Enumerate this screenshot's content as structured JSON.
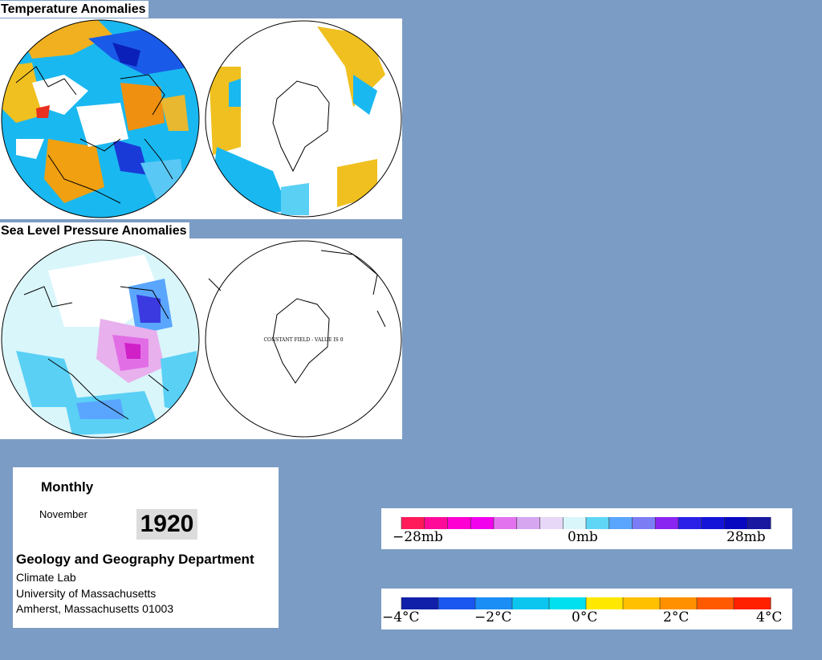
{
  "sections": {
    "temperature_title": "Temperature Anomalies",
    "pressure_title": "Sea Level Pressure Anomalies"
  },
  "maps": {
    "slp_south_annotation": "CONSTANT FIELD - VALUE IS 0"
  },
  "info": {
    "period": "Monthly",
    "month": "November",
    "year": "1920",
    "department": "Geology and Geography Department",
    "lab": "Climate Lab",
    "university": "University of Massachusetts",
    "address": "Amherst, Massachusetts 01003"
  },
  "legends": {
    "pressure": {
      "ticks": [
        "−28mb",
        "0mb",
        "28mb"
      ],
      "colors": [
        "#ff1a5a",
        "#ff0a99",
        "#ff00d2",
        "#f200ee",
        "#e272ee",
        "#d6a6f0",
        "#e8d8f8",
        "#d9f6fb",
        "#5fd6f6",
        "#5aa6ff",
        "#7c7cf4",
        "#8a24f0",
        "#2a20e8",
        "#1414d8",
        "#0808c0",
        "#1818a0"
      ]
    },
    "temperature": {
      "ticks": [
        "−4°C",
        "−2°C",
        "0°C",
        "2°C",
        "4°C"
      ],
      "colors": [
        "#1020a8",
        "#1a56f0",
        "#1a8ef4",
        "#0cc6f0",
        "#00e0ee",
        "#ffe800",
        "#ffc000",
        "#ff9000",
        "#ff5a00",
        "#ff2000"
      ]
    }
  }
}
